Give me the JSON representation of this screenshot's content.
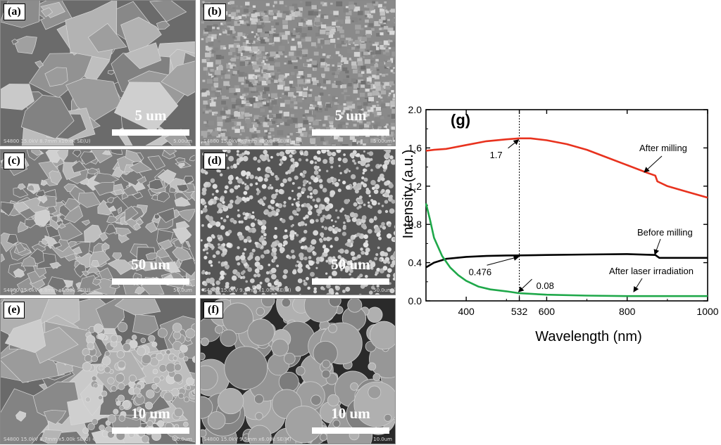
{
  "panels": [
    {
      "label": "(a)",
      "scale": "5 um",
      "meta_left": "S4800 15.0kV 8.7mm x10.0k SE(U)",
      "meta_right": "5.00um",
      "style": "flakes"
    },
    {
      "label": "(b)",
      "scale": "5 um",
      "meta_left": "S4800 15.0kV 9.7mm x10.0k SE(M)",
      "meta_right": "5.00um",
      "style": "fine"
    },
    {
      "label": "(c)",
      "scale": "50 um",
      "meta_left": "S4800 15.0kV 8.8mm x1.00k SE(U)",
      "meta_right": "50.0um",
      "style": "mixed"
    },
    {
      "label": "(d)",
      "scale": "50 um",
      "meta_left": "S4800 15.0kV 9.5mm x1.00k SE(M)",
      "meta_right": "50.0um",
      "style": "clusters"
    },
    {
      "label": "(e)",
      "scale": "10 um",
      "meta_left": "S4800 15.0kV 8.7mm x5.00k SE(U)",
      "meta_right": "10.0um",
      "style": "flakes_small"
    },
    {
      "label": "(f)",
      "scale": "10 um",
      "meta_left": "S4800 15.0kV 9.5mm x6.00k SE(M)",
      "meta_right": "10.0um",
      "style": "spheres"
    }
  ],
  "chart_data": {
    "type": "line",
    "panel_label": "(g)",
    "xlabel": "Wavelength  (nm)",
    "ylabel": "Intensity (a.u.)",
    "xlim": [
      300,
      1000
    ],
    "ylim": [
      0.0,
      2.0
    ],
    "xticks": [
      400,
      532,
      600,
      800,
      1000
    ],
    "yticks": [
      "0.0",
      "0.4",
      "0.8",
      "1.2",
      "1.6",
      "2.0"
    ],
    "series": [
      {
        "name": "After milling",
        "color": "#e8321e",
        "x": [
          300,
          320,
          350,
          400,
          450,
          500,
          532,
          560,
          600,
          650,
          700,
          750,
          800,
          850,
          870,
          875,
          900,
          950,
          1000
        ],
        "y": [
          1.57,
          1.58,
          1.59,
          1.63,
          1.67,
          1.69,
          1.7,
          1.7,
          1.68,
          1.64,
          1.58,
          1.5,
          1.42,
          1.34,
          1.31,
          1.25,
          1.2,
          1.14,
          1.08
        ]
      },
      {
        "name": "Before milling",
        "color": "#000000",
        "x": [
          300,
          320,
          350,
          400,
          450,
          500,
          532,
          600,
          700,
          800,
          870,
          880,
          900,
          1000
        ],
        "y": [
          0.35,
          0.4,
          0.44,
          0.46,
          0.47,
          0.475,
          0.476,
          0.48,
          0.485,
          0.49,
          0.48,
          0.45,
          0.45,
          0.45
        ]
      },
      {
        "name": "After laser irradiation",
        "color": "#1fa84a",
        "x": [
          300,
          310,
          320,
          340,
          360,
          380,
          400,
          430,
          460,
          500,
          532,
          600,
          700,
          800,
          900,
          1000
        ],
        "y": [
          1.02,
          0.85,
          0.66,
          0.47,
          0.35,
          0.27,
          0.21,
          0.15,
          0.12,
          0.1,
          0.08,
          0.065,
          0.055,
          0.05,
          0.05,
          0.05
        ]
      }
    ],
    "vline_x": 532,
    "annotations": [
      {
        "text": "1.7",
        "x": 532,
        "y": 1.7
      },
      {
        "text": "0.476",
        "x": 532,
        "y": 0.476
      },
      {
        "text": "0.08",
        "x": 532,
        "y": 0.08
      }
    ],
    "legend_labels": [
      {
        "text": "After milling",
        "series": 0
      },
      {
        "text": "Before milling",
        "series": 1
      },
      {
        "text": "After laser irradiation",
        "series": 2
      }
    ]
  }
}
